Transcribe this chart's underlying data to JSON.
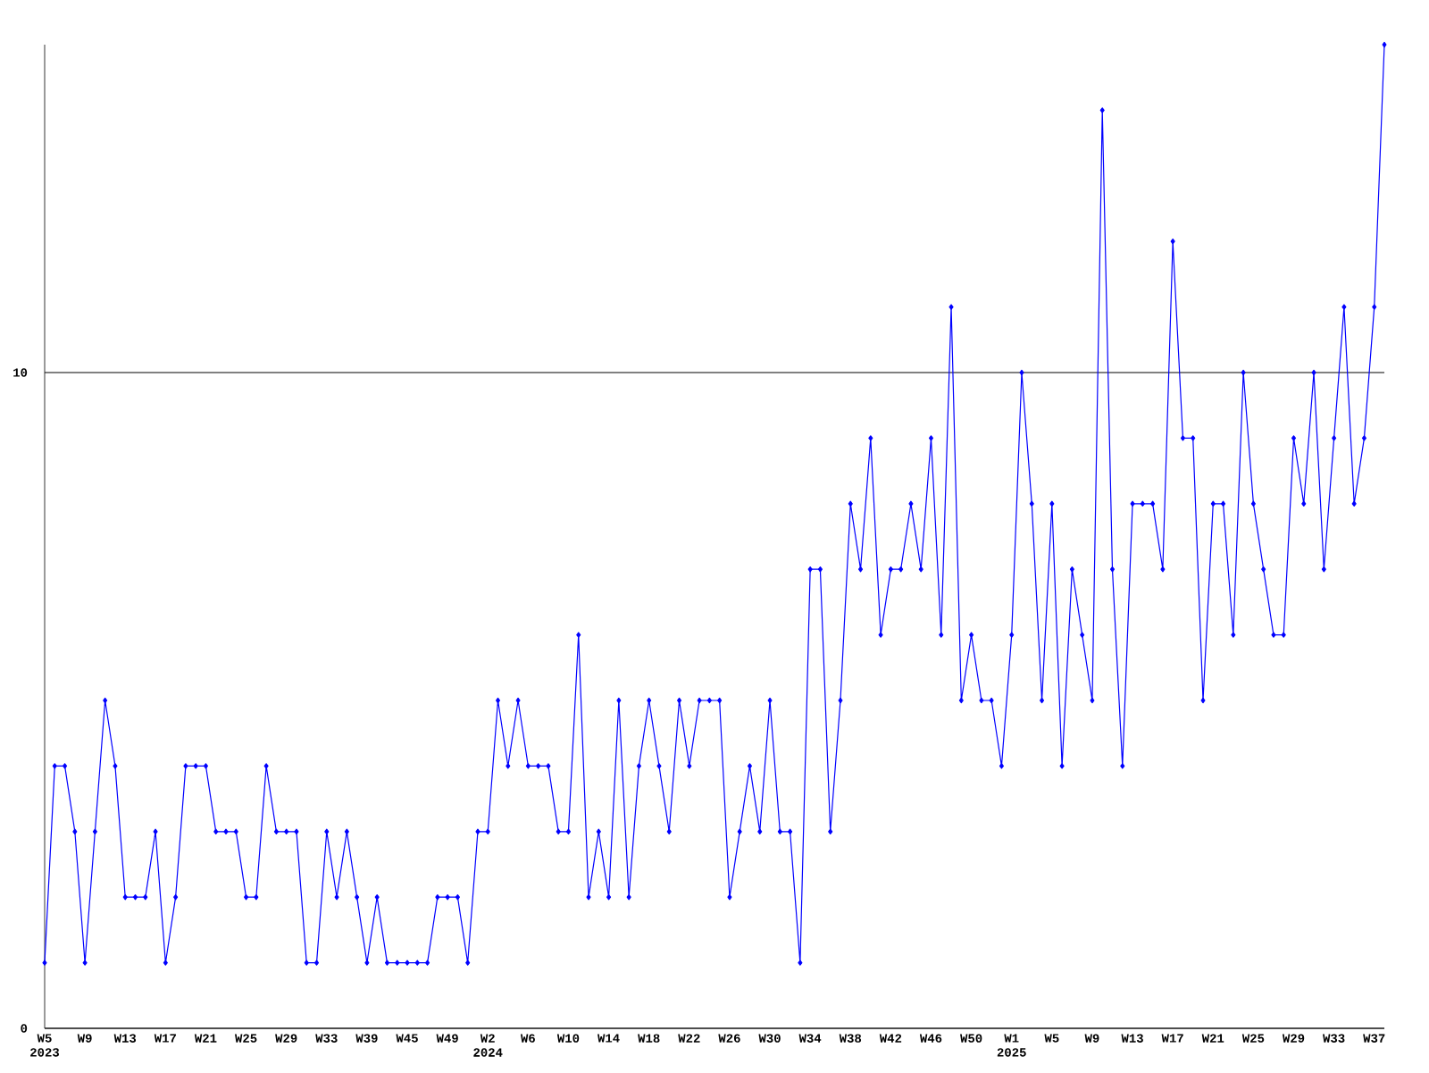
{
  "chart_data": {
    "type": "line",
    "categories": [
      "W5 2023",
      null,
      null,
      null,
      "W9",
      null,
      null,
      null,
      "W13",
      null,
      null,
      null,
      "W17",
      null,
      null,
      null,
      "W21",
      null,
      null,
      null,
      "W25",
      null,
      null,
      null,
      "W29",
      null,
      null,
      null,
      "W33",
      null,
      null,
      null,
      "W39",
      null,
      null,
      null,
      "W45",
      null,
      null,
      null,
      "W49",
      null,
      null,
      null,
      "W2 2024",
      null,
      null,
      null,
      "W6",
      null,
      null,
      null,
      "W10",
      null,
      null,
      null,
      "W14",
      null,
      null,
      null,
      "W18",
      null,
      null,
      null,
      "W22",
      null,
      null,
      null,
      "W26",
      null,
      null,
      null,
      "W30",
      null,
      null,
      null,
      "W34",
      null,
      null,
      null,
      "W38",
      null,
      null,
      null,
      "W42",
      null,
      null,
      null,
      "W46",
      null,
      null,
      null,
      "W50",
      null,
      null,
      null,
      "W1 2025",
      null,
      null,
      null,
      "W5",
      null,
      null,
      null,
      "W9",
      null,
      null,
      null,
      "W13",
      null,
      null,
      null,
      "W17",
      null,
      null,
      null,
      "W21",
      null,
      null,
      null,
      "W25",
      null,
      null,
      null,
      "W29",
      null,
      null,
      null,
      "W33",
      null,
      null,
      null,
      "W37",
      null
    ],
    "values": [
      1,
      4,
      4,
      3,
      1,
      3,
      5,
      4,
      2,
      2,
      2,
      3,
      1,
      2,
      4,
      4,
      4,
      3,
      3,
      3,
      2,
      2,
      4,
      3,
      3,
      3,
      1,
      1,
      3,
      2,
      3,
      2,
      1,
      2,
      1,
      1,
      1,
      1,
      1,
      2,
      2,
      2,
      1,
      3,
      3,
      5,
      4,
      5,
      4,
      4,
      4,
      3,
      3,
      6,
      2,
      3,
      2,
      5,
      2,
      4,
      5,
      4,
      3,
      5,
      4,
      5,
      5,
      5,
      2,
      3,
      4,
      3,
      5,
      3,
      3,
      1,
      7,
      7,
      3,
      5,
      8,
      7,
      9,
      6,
      7,
      7,
      8,
      7,
      9,
      6,
      11,
      5,
      6,
      5,
      5,
      4,
      6,
      10,
      8,
      5,
      8,
      4,
      7,
      6,
      5,
      14,
      7,
      4,
      8,
      8,
      8,
      7,
      12,
      9,
      9,
      5,
      8,
      8,
      6,
      10,
      8,
      7,
      6,
      6,
      9,
      8,
      10,
      7,
      9,
      11,
      8,
      9,
      11,
      15
    ],
    "color": "#0000ff",
    "marker": "diamond",
    "line_style": "solid",
    "ylim": [
      0,
      15
    ],
    "yticks": [
      0,
      10
    ],
    "grid": "y"
  }
}
